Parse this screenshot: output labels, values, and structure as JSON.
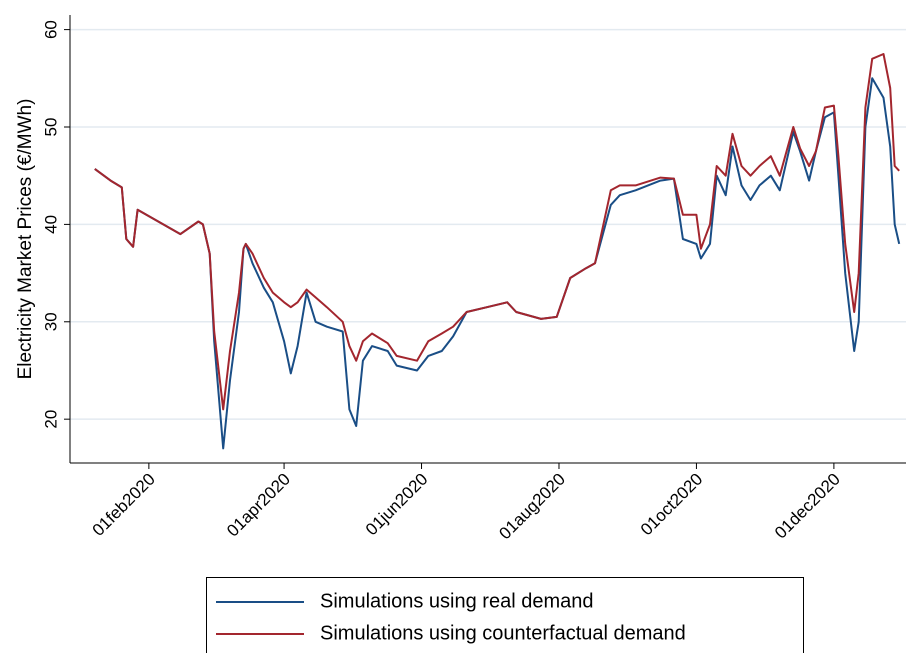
{
  "chart_data": {
    "type": "line",
    "y_label": "Electricity Market Prices (€/MWh)",
    "ylim": [
      15.5,
      61.5
    ],
    "yticks": [
      20,
      30,
      40,
      50,
      60
    ],
    "xlim": [
      "2019-12-28",
      "2021-01-02"
    ],
    "xticks": [
      {
        "value": "2020-02-01",
        "label": "01feb2020"
      },
      {
        "value": "2020-04-01",
        "label": "01apr2020"
      },
      {
        "value": "2020-06-01",
        "label": "01jun2020"
      },
      {
        "value": "2020-08-01",
        "label": "01aug2020"
      },
      {
        "value": "2020-10-01",
        "label": "01oct2020"
      },
      {
        "value": "2020-12-01",
        "label": "01dec2020"
      }
    ],
    "grid": true,
    "legend": "bottom",
    "x": [
      "2020-01-08",
      "2020-01-15",
      "2020-01-20",
      "2020-01-22",
      "2020-01-25",
      "2020-01-27",
      "2020-02-15",
      "2020-02-23",
      "2020-02-25",
      "2020-02-28",
      "2020-03-01",
      "2020-03-05",
      "2020-03-08",
      "2020-03-12",
      "2020-03-14",
      "2020-03-15",
      "2020-03-18",
      "2020-03-23",
      "2020-03-27",
      "2020-04-01",
      "2020-04-04",
      "2020-04-07",
      "2020-04-11",
      "2020-04-15",
      "2020-04-20",
      "2020-04-27",
      "2020-04-30",
      "2020-05-03",
      "2020-05-06",
      "2020-05-10",
      "2020-05-17",
      "2020-05-21",
      "2020-05-30",
      "2020-06-04",
      "2020-06-10",
      "2020-06-15",
      "2020-06-21",
      "2020-06-30",
      "2020-07-09",
      "2020-07-13",
      "2020-07-24",
      "2020-07-31",
      "2020-08-06",
      "2020-08-13",
      "2020-08-17",
      "2020-08-24",
      "2020-08-28",
      "2020-09-04",
      "2020-09-15",
      "2020-09-21",
      "2020-09-25",
      "2020-10-01",
      "2020-10-03",
      "2020-10-07",
      "2020-10-10",
      "2020-10-14",
      "2020-10-17",
      "2020-10-21",
      "2020-10-25",
      "2020-10-29",
      "2020-11-03",
      "2020-11-07",
      "2020-11-13",
      "2020-11-16",
      "2020-11-20",
      "2020-11-23",
      "2020-11-27",
      "2020-12-01",
      "2020-12-03",
      "2020-12-06",
      "2020-12-10",
      "2020-12-12",
      "2020-12-15",
      "2020-12-18",
      "2020-12-23",
      "2020-12-26",
      "2020-12-28",
      "2020-12-30"
    ],
    "series": [
      {
        "name": "Simulations using real demand",
        "color": "#1a4e86",
        "values": [
          45.7,
          44.5,
          43.8,
          38.5,
          37.7,
          41.5,
          39,
          40.3,
          40,
          37,
          28,
          17,
          24,
          31,
          37.5,
          38,
          36,
          33.5,
          32,
          28,
          24.7,
          27.5,
          33,
          30,
          29.5,
          29,
          21,
          19.3,
          26,
          27.5,
          27,
          25.5,
          25,
          26.5,
          27,
          28.5,
          31,
          31.5,
          32,
          31,
          30.3,
          30.5,
          34.5,
          35.5,
          36,
          42,
          43,
          43.5,
          44.5,
          44.7,
          38.5,
          38,
          36.5,
          38,
          45,
          43,
          48,
          44,
          42.5,
          44,
          45,
          43.5,
          49.5,
          47.5,
          44.5,
          47.5,
          51,
          51.5,
          45,
          35,
          27,
          30,
          50,
          55,
          53,
          48,
          40,
          38
        ]
      },
      {
        "name": "Simulations using counterfactual demand",
        "color": "#a3262e",
        "values": [
          45.7,
          44.5,
          43.8,
          38.5,
          37.7,
          41.5,
          39,
          40.3,
          40,
          37,
          29,
          21,
          27,
          33,
          37.5,
          38,
          37,
          34.5,
          33,
          32,
          31.5,
          32,
          33.3,
          32.5,
          31.5,
          30,
          27.5,
          26,
          28,
          28.8,
          27.8,
          26.5,
          26,
          28,
          28.8,
          29.5,
          31,
          31.5,
          32,
          31,
          30.3,
          30.5,
          34.5,
          35.5,
          36,
          43.5,
          44,
          44,
          44.8,
          44.7,
          41,
          41,
          37.5,
          40,
          46,
          45,
          49.3,
          46,
          45,
          46,
          47,
          45,
          50,
          47.8,
          46,
          47.5,
          52,
          52.2,
          47,
          38,
          31,
          35,
          52,
          57,
          57.5,
          54,
          46,
          45.5
        ]
      }
    ]
  }
}
